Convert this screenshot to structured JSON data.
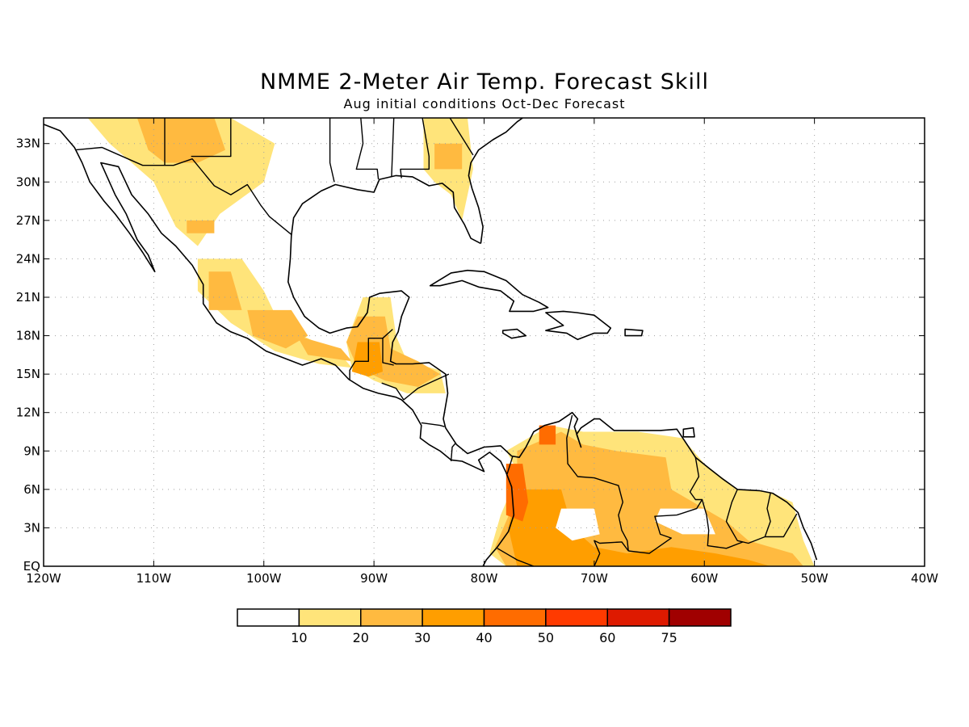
{
  "figure": {
    "title": "NMME 2-Meter Air Temp. Forecast Skill",
    "subtitle": "Aug initial conditions  Oct-Dec Forecast"
  },
  "map": {
    "lon_range": [
      -120,
      -40
    ],
    "lat_range": [
      0,
      35
    ],
    "lat_ticks": [
      {
        "value": 33,
        "label": "33N"
      },
      {
        "value": 30,
        "label": "30N"
      },
      {
        "value": 27,
        "label": "27N"
      },
      {
        "value": 24,
        "label": "24N"
      },
      {
        "value": 21,
        "label": "21N"
      },
      {
        "value": 18,
        "label": "18N"
      },
      {
        "value": 15,
        "label": "15N"
      },
      {
        "value": 12,
        "label": "12N"
      },
      {
        "value": 9,
        "label": "9N"
      },
      {
        "value": 6,
        "label": "6N"
      },
      {
        "value": 3,
        "label": "3N"
      },
      {
        "value": 0,
        "label": "EQ"
      }
    ],
    "lon_ticks": [
      {
        "value": -120,
        "label": "120W"
      },
      {
        "value": -110,
        "label": "110W"
      },
      {
        "value": -100,
        "label": "100W"
      },
      {
        "value": -90,
        "label": "90W"
      },
      {
        "value": -80,
        "label": "80W"
      },
      {
        "value": -70,
        "label": "70W"
      },
      {
        "value": -60,
        "label": "60W"
      },
      {
        "value": -50,
        "label": "50W"
      },
      {
        "value": -40,
        "label": "40W"
      }
    ],
    "grid": true,
    "grid_style": "dotted",
    "skill_regions": [
      {
        "region": "southwest-us-north-mexico",
        "level": 1,
        "lonlat": [
          [
            -116,
            35
          ],
          [
            -103,
            35
          ],
          [
            -99,
            33
          ],
          [
            -100,
            30
          ],
          [
            -104,
            27.5
          ],
          [
            -106,
            25
          ],
          [
            -108,
            26.5
          ],
          [
            -110,
            30
          ],
          [
            -114,
            33
          ]
        ]
      },
      {
        "region": "arizona-new-mexico",
        "level": 2,
        "lonlat": [
          [
            -111.5,
            35
          ],
          [
            -104.5,
            35
          ],
          [
            -103.5,
            32.5
          ],
          [
            -106,
            31.5
          ],
          [
            -109,
            31.5
          ],
          [
            -110.5,
            32.5
          ]
        ]
      },
      {
        "region": "northwest-mexico",
        "level": 2,
        "lonlat": [
          [
            -107,
            27
          ],
          [
            -104.5,
            27
          ],
          [
            -104.5,
            26
          ],
          [
            -107,
            26
          ]
        ]
      },
      {
        "region": "central-mexico-west",
        "level": 1,
        "lonlat": [
          [
            -106,
            24
          ],
          [
            -102,
            24
          ],
          [
            -100,
            21.5
          ],
          [
            -98.5,
            18.8
          ],
          [
            -96,
            17.8
          ],
          [
            -93,
            16.5
          ],
          [
            -92,
            15.5
          ],
          [
            -95,
            15.8
          ],
          [
            -99,
            16.8
          ],
          [
            -103,
            19
          ],
          [
            -106,
            21.5
          ]
        ]
      },
      {
        "region": "jalisco",
        "level": 2,
        "lonlat": [
          [
            -105,
            23
          ],
          [
            -103,
            23
          ],
          [
            -102,
            20
          ],
          [
            -105,
            20
          ]
        ]
      },
      {
        "region": "michoacan-guerrero",
        "level": 2,
        "lonlat": [
          [
            -101.5,
            20
          ],
          [
            -97.5,
            20
          ],
          [
            -96,
            18
          ],
          [
            -98,
            17
          ],
          [
            -101,
            18
          ]
        ]
      },
      {
        "region": "oaxaca",
        "level": 2,
        "lonlat": [
          [
            -97,
            18
          ],
          [
            -93,
            17
          ],
          [
            -92,
            16
          ],
          [
            -96,
            16.5
          ]
        ]
      },
      {
        "region": "yucatan-belize",
        "level": 1,
        "lonlat": [
          [
            -91,
            21
          ],
          [
            -88.5,
            21
          ],
          [
            -88,
            18
          ],
          [
            -87,
            16
          ],
          [
            -84,
            15.3
          ],
          [
            -83.5,
            13.5
          ],
          [
            -87,
            13.5
          ],
          [
            -90,
            14.5
          ],
          [
            -92,
            15.5
          ],
          [
            -92.5,
            17.5
          ]
        ]
      },
      {
        "region": "guatemala-honduras",
        "level": 2,
        "lonlat": [
          [
            -91.5,
            19.5
          ],
          [
            -89,
            19.5
          ],
          [
            -88.5,
            17
          ],
          [
            -86,
            16
          ],
          [
            -84,
            15
          ],
          [
            -86,
            14
          ],
          [
            -89,
            14.5
          ],
          [
            -91.5,
            15.5
          ],
          [
            -92.5,
            17.5
          ]
        ]
      },
      {
        "region": "guatemala-core",
        "level": 3,
        "lonlat": [
          [
            -91.5,
            17.5
          ],
          [
            -89.5,
            17.5
          ],
          [
            -89.2,
            15.2
          ],
          [
            -90.5,
            14.8
          ],
          [
            -92,
            15.2
          ]
        ]
      },
      {
        "region": "southeast-us",
        "level": 1,
        "lonlat": [
          [
            -85.5,
            35
          ],
          [
            -81.5,
            35
          ],
          [
            -81,
            31
          ],
          [
            -82,
            27
          ],
          [
            -83,
            29
          ],
          [
            -84.5,
            30
          ],
          [
            -85.5,
            31
          ]
        ]
      },
      {
        "region": "georgia",
        "level": 2,
        "lonlat": [
          [
            -84.5,
            33
          ],
          [
            -82,
            33
          ],
          [
            -82,
            31
          ],
          [
            -84.5,
            31
          ]
        ]
      },
      {
        "region": "northern-south-america",
        "level": 1,
        "lonlat": [
          [
            -78,
            9
          ],
          [
            -74,
            11
          ],
          [
            -71,
            10.5
          ],
          [
            -66,
            10.5
          ],
          [
            -62,
            10
          ],
          [
            -60,
            8
          ],
          [
            -57,
            6
          ],
          [
            -54,
            5.8
          ],
          [
            -52,
            5
          ],
          [
            -51,
            2
          ],
          [
            -50,
            0
          ],
          [
            -57,
            0
          ],
          [
            -60,
            0
          ],
          [
            -67,
            0
          ],
          [
            -72,
            0
          ],
          [
            -78,
            0
          ],
          [
            -79.5,
            1
          ],
          [
            -78.5,
            4
          ],
          [
            -77.5,
            6
          ],
          [
            -77,
            7.5
          ]
        ]
      },
      {
        "region": "colombia-venezuela",
        "level": 2,
        "lonlat": [
          [
            -77,
            9
          ],
          [
            -73,
            10.5
          ],
          [
            -71,
            9.5
          ],
          [
            -68,
            9
          ],
          [
            -63.5,
            8.5
          ],
          [
            -63,
            6
          ],
          [
            -61,
            5
          ],
          [
            -58,
            3.5
          ],
          [
            -56,
            2
          ],
          [
            -52,
            1
          ],
          [
            -51,
            0
          ],
          [
            -78,
            0
          ],
          [
            -79,
            1.5
          ],
          [
            -77.5,
            4.5
          ],
          [
            -77,
            7
          ]
        ]
      },
      {
        "region": "amazon-west",
        "level": 3,
        "lonlat": [
          [
            -77,
            6
          ],
          [
            -73,
            6
          ],
          [
            -72,
            3
          ],
          [
            -70,
            1.5
          ],
          [
            -67,
            1
          ],
          [
            -63,
            1.5
          ],
          [
            -59,
            1
          ],
          [
            -56,
            0.5
          ],
          [
            -54,
            0
          ],
          [
            -73,
            0
          ],
          [
            -77,
            0
          ],
          [
            -77.8,
            3
          ]
        ]
      },
      {
        "region": "colombia-pacific",
        "level": 4,
        "lonlat": [
          [
            -78,
            8
          ],
          [
            -76.5,
            8
          ],
          [
            -76,
            5
          ],
          [
            -76.5,
            3.5
          ],
          [
            -78,
            4
          ]
        ]
      },
      {
        "region": "colombia-north",
        "level": 4,
        "lonlat": [
          [
            -75,
            11
          ],
          [
            -73.5,
            11
          ],
          [
            -73.5,
            9.5
          ],
          [
            -75,
            9.5
          ]
        ]
      }
    ],
    "outside_region": "bolivar-plateau"
  },
  "colorbar": {
    "colors": [
      "#ffffff",
      "#ffe47a",
      "#ffba40",
      "#ff9e00",
      "#ff6c00",
      "#ff3a00",
      "#de1a00",
      "#a00000"
    ],
    "labels": [
      "10",
      "20",
      "30",
      "40",
      "50",
      "60",
      "75"
    ]
  },
  "colors": {
    "frame": "#000000",
    "coast": "#000000",
    "grid": "#a0a0a0"
  }
}
